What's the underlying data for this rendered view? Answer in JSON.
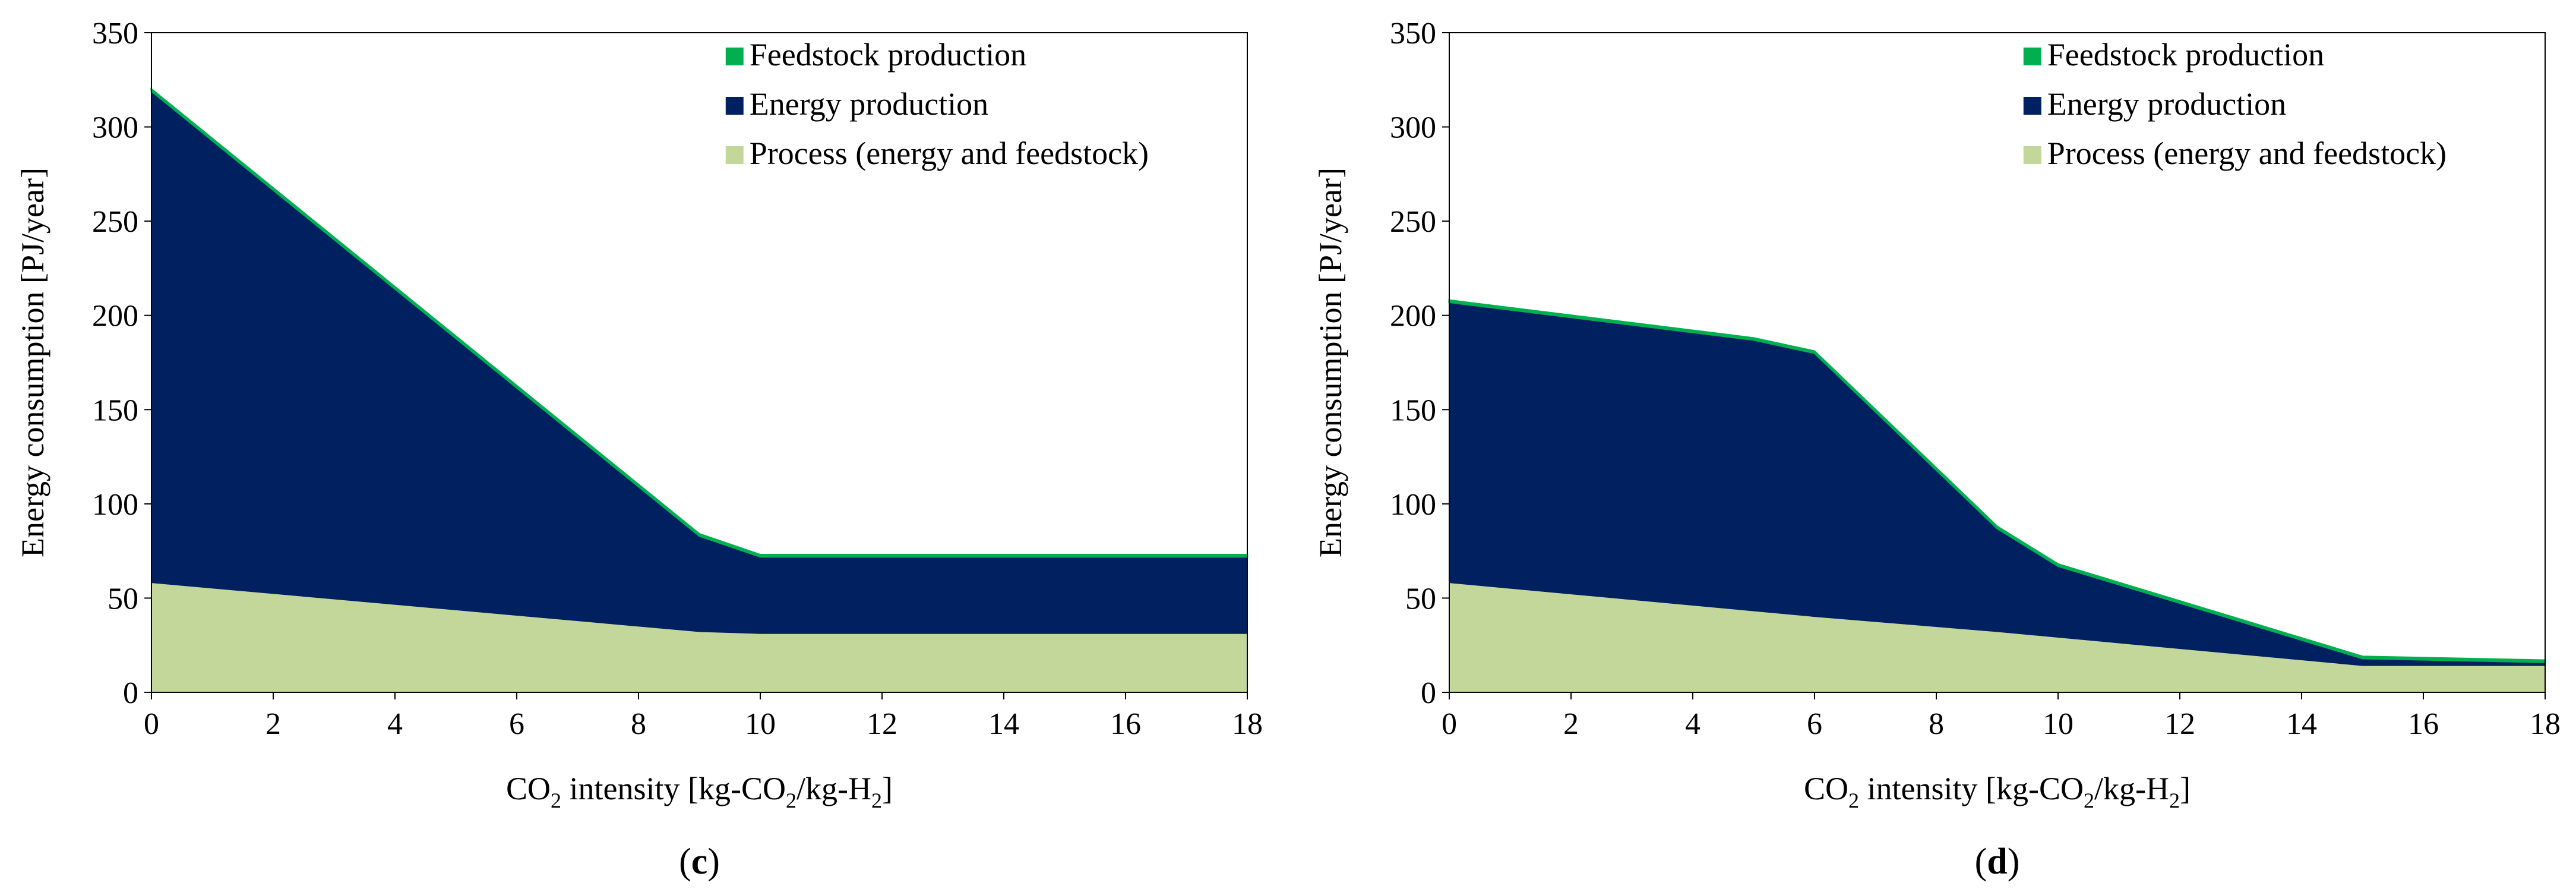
{
  "colors": {
    "feedstock": "#00B050",
    "energy": "#002060",
    "process": "#C4D79B"
  },
  "chart_data": [
    {
      "type": "area",
      "stacked": true,
      "panel_open": "(",
      "panel_letter": "c",
      "panel_close": ")",
      "ylabel": "Energy consumption [PJ/year]",
      "xlabel": {
        "a": "CO",
        "a_sub": "2",
        "b": " intensity [kg-CO",
        "b_sub": "2",
        "c": "/kg-H",
        "c_sub": "2",
        "d": "]"
      },
      "xlim": [
        0,
        18
      ],
      "ylim": [
        0,
        350
      ],
      "xticks": [
        "0",
        "2",
        "4",
        "6",
        "8",
        "10",
        "12",
        "14",
        "16",
        "18"
      ],
      "yticks": [
        "0",
        "50",
        "100",
        "150",
        "200",
        "250",
        "300",
        "350"
      ],
      "legend_position": "top-right",
      "x": [
        0,
        9,
        10,
        18
      ],
      "series": [
        {
          "name": "Process (energy and feedstock)",
          "values": [
            58,
            32,
            31,
            31
          ]
        },
        {
          "name": "Energy production",
          "values": [
            261,
            51,
            41,
            41
          ]
        },
        {
          "name": "Feedstock production",
          "values": [
            1,
            1,
            1,
            1
          ]
        }
      ]
    },
    {
      "type": "area",
      "stacked": true,
      "panel_open": "(",
      "panel_letter": "d",
      "panel_close": ")",
      "ylabel": "Energy consumption [PJ/year]",
      "xlabel": {
        "a": "CO",
        "a_sub": "2",
        "b": " intensity [kg-CO",
        "b_sub": "2",
        "c": "/kg-H",
        "c_sub": "2",
        "d": "]"
      },
      "xlim": [
        0,
        18
      ],
      "ylim": [
        0,
        350
      ],
      "xticks": [
        "0",
        "2",
        "4",
        "6",
        "8",
        "10",
        "12",
        "14",
        "16",
        "18"
      ],
      "yticks": [
        "0",
        "50",
        "100",
        "150",
        "200",
        "250",
        "300",
        "350"
      ],
      "legend_position": "top-right",
      "x": [
        0,
        5,
        6,
        9,
        10,
        15,
        18
      ],
      "series": [
        {
          "name": "Process (energy and feedstock)",
          "values": [
            58,
            43,
            40,
            32,
            29,
            14,
            14
          ]
        },
        {
          "name": "Energy production",
          "values": [
            149,
            144,
            140,
            55,
            38,
            4,
            2
          ]
        },
        {
          "name": "Feedstock production",
          "values": [
            1,
            1,
            1,
            1,
            1,
            1,
            1
          ]
        }
      ]
    }
  ]
}
